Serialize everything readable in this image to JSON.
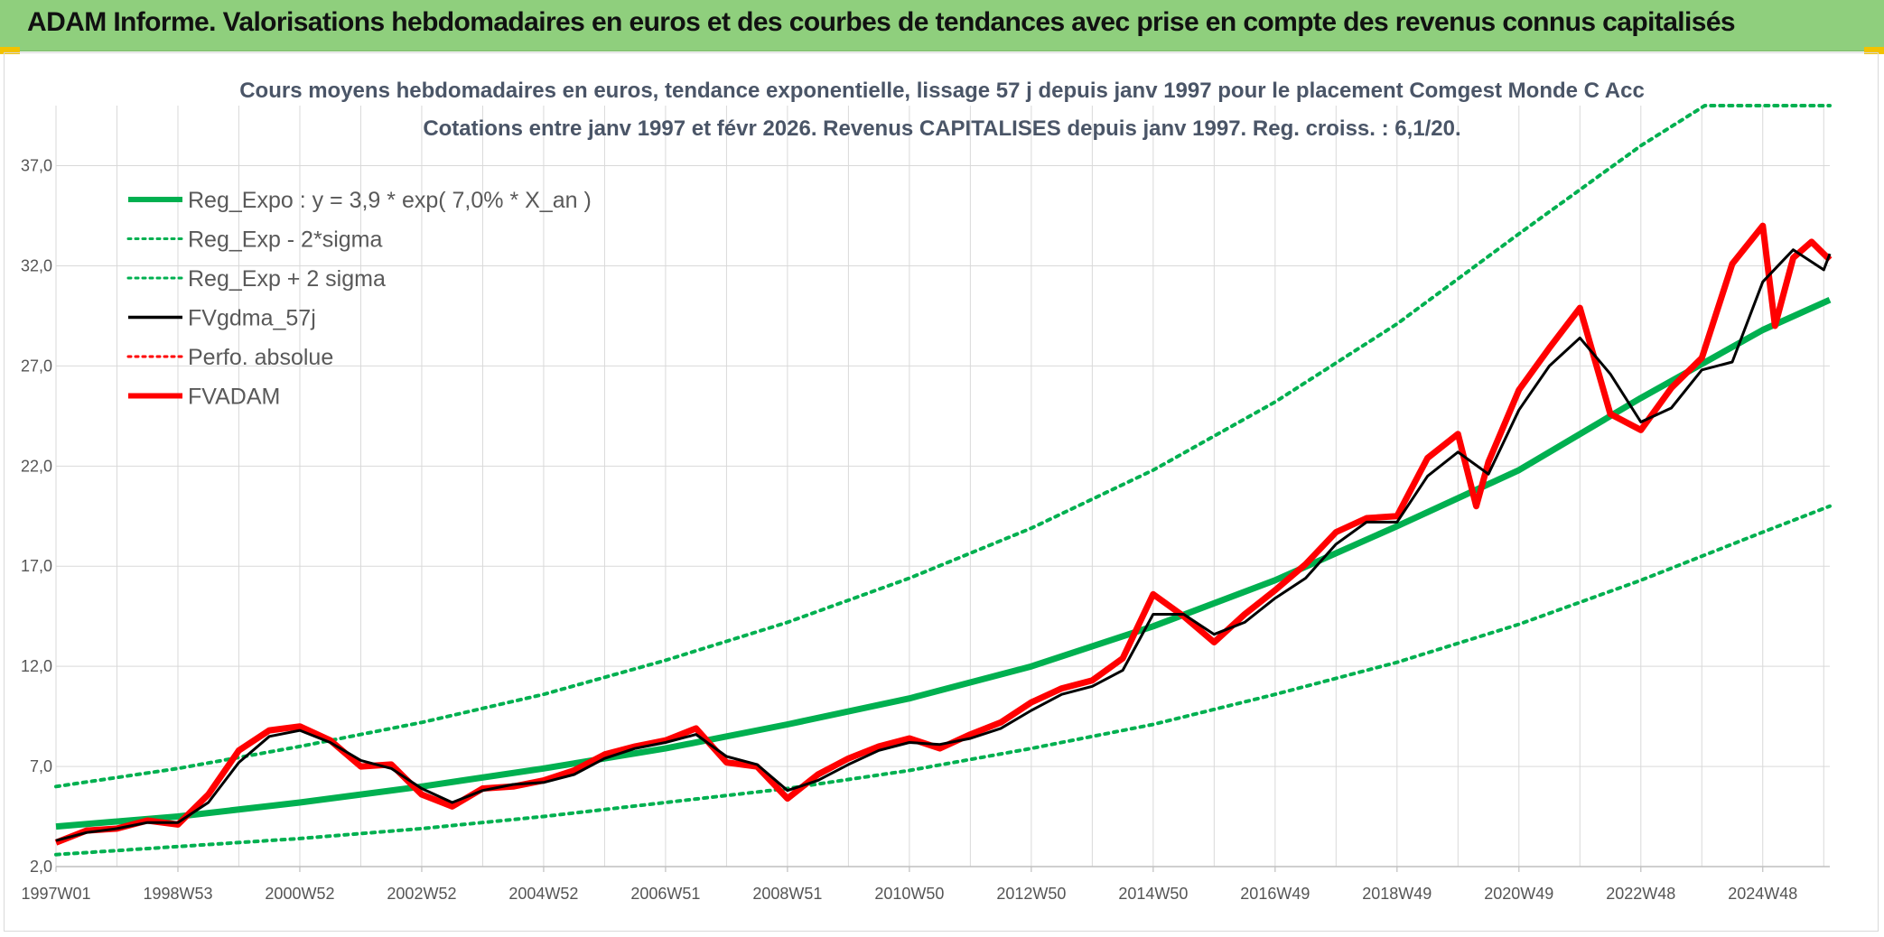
{
  "header": {
    "title": "ADAM Informe. Valorisations hebdomadaires en euros et des courbes de tendances avec prise en compte des revenus connus capitalisés"
  },
  "colors": {
    "header_bg": "#8fcf7d",
    "reg_expo": "#00b050",
    "fvgdma": "#000000",
    "fvadam": "#ff0000",
    "grid": "#d9d9d9"
  },
  "chart_data": {
    "type": "line",
    "title": "Cours moyens hebdomadaires en euros, tendance exponentielle, lissage 57 j depuis janv 1997 pour le placement Comgest Monde C Acc",
    "subtitle": "Cotations entre janv 1997 et févr 2026. Revenus CAPITALISES depuis janv 1997. Reg. croiss. : 6,1/20.",
    "xlabel": "",
    "ylabel": "",
    "xlim": [
      1997.0,
      2026.1
    ],
    "ylim": [
      2.0,
      40.0
    ],
    "grid": true,
    "legend_position": "top-left",
    "y_ticks": [
      "2,0",
      "7,0",
      "12,0",
      "17,0",
      "22,0",
      "27,0",
      "32,0",
      "37,0"
    ],
    "y_tick_values": [
      2,
      7,
      12,
      17,
      22,
      27,
      32,
      37
    ],
    "x_ticks": [
      "1997W01",
      "1998W53",
      "2000W52",
      "2002W52",
      "2004W52",
      "2006W51",
      "2008W51",
      "2010W50",
      "2012W50",
      "2014W50",
      "2016W49",
      "2018W49",
      "2020W49",
      "2022W48",
      "2024W48"
    ],
    "x_tick_values": [
      1997.0,
      1999.0,
      2001.0,
      2003.0,
      2005.0,
      2007.0,
      2009.0,
      2011.0,
      2013.0,
      2015.0,
      2017.0,
      2019.0,
      2021.0,
      2023.0,
      2025.0
    ],
    "legend": [
      "Reg_Expo : y = 3,9 * exp( 7,0% *  X_an )",
      "Reg_Exp - 2*sigma",
      "Reg_Exp + 2 sigma",
      "FVgdma_57j",
      "Perfo. absolue",
      "FVADAM"
    ],
    "series": [
      {
        "name": "Reg_Expo : y = 3,9 * exp( 7,0% *  X_an )",
        "style": "solid-thick",
        "color": "#00b050",
        "x": [
          1997,
          1999,
          2001,
          2003,
          2005,
          2007,
          2009,
          2011,
          2013,
          2015,
          2017,
          2019,
          2021,
          2023,
          2025,
          2026.1
        ],
        "values": [
          4.0,
          4.5,
          5.2,
          6.0,
          6.9,
          7.9,
          9.1,
          10.4,
          12.0,
          14.0,
          16.3,
          19.0,
          21.8,
          25.4,
          28.8,
          30.3
        ]
      },
      {
        "name": "Reg_Exp - 2*sigma",
        "style": "dotted",
        "color": "#00b050",
        "x": [
          1997,
          1999,
          2001,
          2003,
          2005,
          2007,
          2009,
          2011,
          2013,
          2015,
          2017,
          2019,
          2021,
          2023,
          2025,
          2026.1
        ],
        "values": [
          2.6,
          3.0,
          3.4,
          3.9,
          4.5,
          5.2,
          5.9,
          6.8,
          7.9,
          9.1,
          10.6,
          12.2,
          14.1,
          16.3,
          18.7,
          20.0
        ]
      },
      {
        "name": "Reg_Exp + 2 sigma",
        "style": "dotted",
        "color": "#00b050",
        "x": [
          1997,
          1999,
          2001,
          2003,
          2005,
          2007,
          2009,
          2011,
          2013,
          2015,
          2017,
          2019,
          2021,
          2023,
          2024.05,
          2025,
          2026.1
        ],
        "values": [
          6.0,
          6.9,
          8.0,
          9.2,
          10.6,
          12.3,
          14.2,
          16.4,
          18.9,
          21.8,
          25.2,
          29.1,
          33.6,
          38.0,
          40.0,
          40.0,
          40.0
        ]
      },
      {
        "name": "FVgdma_57j",
        "style": "solid",
        "color": "#000000",
        "x": [
          1997.0,
          1997.5,
          1998.0,
          1998.5,
          1999.0,
          1999.5,
          2000.0,
          2000.5,
          2001.0,
          2001.5,
          2002.0,
          2002.5,
          2003.0,
          2003.5,
          2004.0,
          2004.5,
          2005.0,
          2005.5,
          2006.0,
          2006.5,
          2007.0,
          2007.5,
          2008.0,
          2008.5,
          2009.0,
          2009.5,
          2010.0,
          2010.5,
          2011.0,
          2011.5,
          2012.0,
          2012.5,
          2013.0,
          2013.5,
          2014.0,
          2014.5,
          2015.0,
          2015.5,
          2016.0,
          2016.5,
          2017.0,
          2017.5,
          2018.0,
          2018.5,
          2019.0,
          2019.5,
          2020.0,
          2020.5,
          2021.0,
          2021.5,
          2022.0,
          2022.5,
          2023.0,
          2023.5,
          2024.0,
          2024.5,
          2025.0,
          2025.5,
          2026.0,
          2026.1
        ],
        "values": [
          3.3,
          3.7,
          3.9,
          4.2,
          4.2,
          5.2,
          7.2,
          8.5,
          8.8,
          8.2,
          7.3,
          6.9,
          5.9,
          5.2,
          5.8,
          6.1,
          6.2,
          6.6,
          7.4,
          7.9,
          8.2,
          8.6,
          7.5,
          7.1,
          5.8,
          6.3,
          7.1,
          7.8,
          8.2,
          8.1,
          8.4,
          8.9,
          9.8,
          10.6,
          11.0,
          11.8,
          14.6,
          14.6,
          13.6,
          14.2,
          15.4,
          16.4,
          18.1,
          19.2,
          19.2,
          21.5,
          22.7,
          21.6,
          24.8,
          27.0,
          28.4,
          26.6,
          24.2,
          24.9,
          26.8,
          27.2,
          31.2,
          32.8,
          31.8,
          32.6
        ]
      },
      {
        "name": "Perfo. absolue",
        "style": "dotted",
        "color": "#ff0000",
        "x": [],
        "values": []
      },
      {
        "name": "FVADAM",
        "style": "solid-thick",
        "color": "#ff0000",
        "x": [
          1997.0,
          1997.5,
          1998.0,
          1998.5,
          1999.0,
          1999.5,
          2000.0,
          2000.5,
          2001.0,
          2001.5,
          2002.0,
          2002.5,
          2003.0,
          2003.5,
          2004.0,
          2004.5,
          2005.0,
          2005.5,
          2006.0,
          2006.5,
          2007.0,
          2007.5,
          2008.0,
          2008.5,
          2009.0,
          2009.5,
          2010.0,
          2010.5,
          2011.0,
          2011.5,
          2012.0,
          2012.5,
          2013.0,
          2013.5,
          2014.0,
          2014.5,
          2015.0,
          2015.5,
          2016.0,
          2016.5,
          2017.0,
          2017.5,
          2018.0,
          2018.5,
          2019.0,
          2019.5,
          2020.0,
          2020.3,
          2020.5,
          2021.0,
          2021.5,
          2022.0,
          2022.5,
          2023.0,
          2023.5,
          2024.0,
          2024.5,
          2025.0,
          2025.2,
          2025.5,
          2025.8,
          2026.0,
          2026.1
        ],
        "values": [
          3.2,
          3.8,
          3.9,
          4.3,
          4.1,
          5.6,
          7.8,
          8.8,
          9.0,
          8.3,
          7.0,
          7.1,
          5.6,
          5.0,
          5.9,
          6.0,
          6.3,
          6.8,
          7.6,
          8.0,
          8.3,
          8.9,
          7.2,
          7.0,
          5.4,
          6.6,
          7.4,
          8.0,
          8.4,
          7.9,
          8.6,
          9.2,
          10.2,
          10.9,
          11.3,
          12.4,
          15.6,
          14.5,
          13.2,
          14.6,
          15.8,
          17.1,
          18.7,
          19.4,
          19.5,
          22.4,
          23.6,
          20.0,
          22.2,
          25.8,
          27.9,
          29.9,
          24.6,
          23.8,
          25.9,
          27.4,
          32.1,
          34.0,
          29.0,
          32.4,
          33.2,
          32.6,
          32.3
        ]
      }
    ]
  }
}
